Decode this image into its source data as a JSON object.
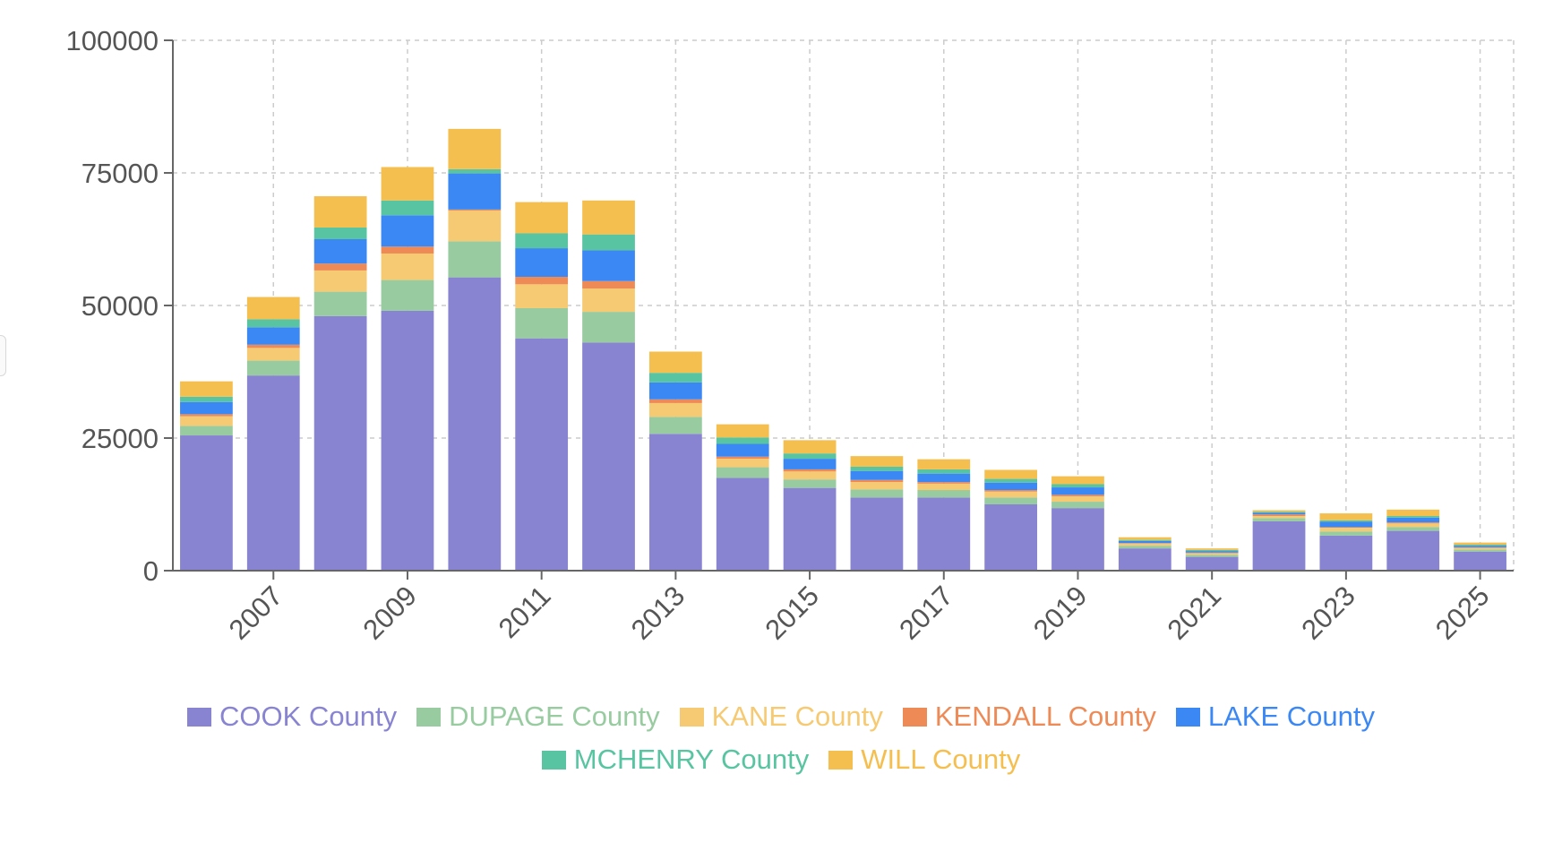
{
  "chart_data": {
    "type": "bar",
    "stacked": true,
    "title": "",
    "xlabel": "",
    "ylabel": "",
    "ylim": [
      0,
      100000
    ],
    "yticks": [
      0,
      25000,
      50000,
      75000,
      100000
    ],
    "xticks": [
      "2007",
      "2009",
      "2011",
      "2013",
      "2015",
      "2017",
      "2019",
      "2021",
      "2023",
      "2025"
    ],
    "categories": [
      "2006",
      "2007",
      "2008",
      "2009",
      "2010",
      "2011",
      "2012",
      "2013",
      "2014",
      "2015",
      "2016",
      "2017",
      "2018",
      "2019",
      "2020",
      "2021",
      "2022",
      "2023",
      "2024",
      "2025"
    ],
    "grid": true,
    "legend_position": "bottom",
    "series": [
      {
        "name": "COOK County",
        "color": "#8884d2",
        "values": [
          25500,
          36800,
          48000,
          49000,
          55300,
          43800,
          43000,
          25800,
          17500,
          15600,
          13800,
          13800,
          12500,
          11800,
          4200,
          2600,
          9300,
          6600,
          7500,
          3600
        ]
      },
      {
        "name": "DUPAGE County",
        "color": "#98cba0",
        "values": [
          1800,
          2800,
          4600,
          5800,
          6800,
          5700,
          5800,
          3200,
          2000,
          1600,
          1500,
          1400,
          1300,
          1200,
          500,
          400,
          600,
          800,
          700,
          400
        ]
      },
      {
        "name": "KANE County",
        "color": "#f6ca72",
        "values": [
          1800,
          2400,
          4000,
          5000,
          5800,
          4500,
          4400,
          2600,
          1600,
          1500,
          1400,
          1200,
          1100,
          1000,
          400,
          300,
          400,
          700,
          700,
          300
        ]
      },
      {
        "name": "KENDALL County",
        "color": "#ee8a55",
        "values": [
          400,
          600,
          1300,
          1300,
          200,
          1400,
          1400,
          700,
          400,
          400,
          400,
          300,
          300,
          300,
          100,
          100,
          300,
          100,
          200,
          100
        ]
      },
      {
        "name": "LAKE County",
        "color": "#3b88f4",
        "values": [
          2300,
          3300,
          4600,
          5900,
          6800,
          5400,
          5800,
          3200,
          2400,
          2000,
          1700,
          1600,
          1400,
          1400,
          400,
          300,
          300,
          1000,
          900,
          300
        ]
      },
      {
        "name": "MCHENRY County",
        "color": "#58c4a1",
        "values": [
          1000,
          1500,
          2200,
          2800,
          800,
          2800,
          3000,
          1800,
          1200,
          1000,
          800,
          800,
          700,
          600,
          200,
          200,
          200,
          300,
          300,
          200
        ]
      },
      {
        "name": "WILL County",
        "color": "#f5bf4f",
        "values": [
          2900,
          4200,
          5900,
          6300,
          7600,
          5900,
          6400,
          4000,
          2500,
          2500,
          2000,
          1900,
          1700,
          1500,
          500,
          300,
          300,
          1300,
          1200,
          400
        ]
      }
    ]
  }
}
